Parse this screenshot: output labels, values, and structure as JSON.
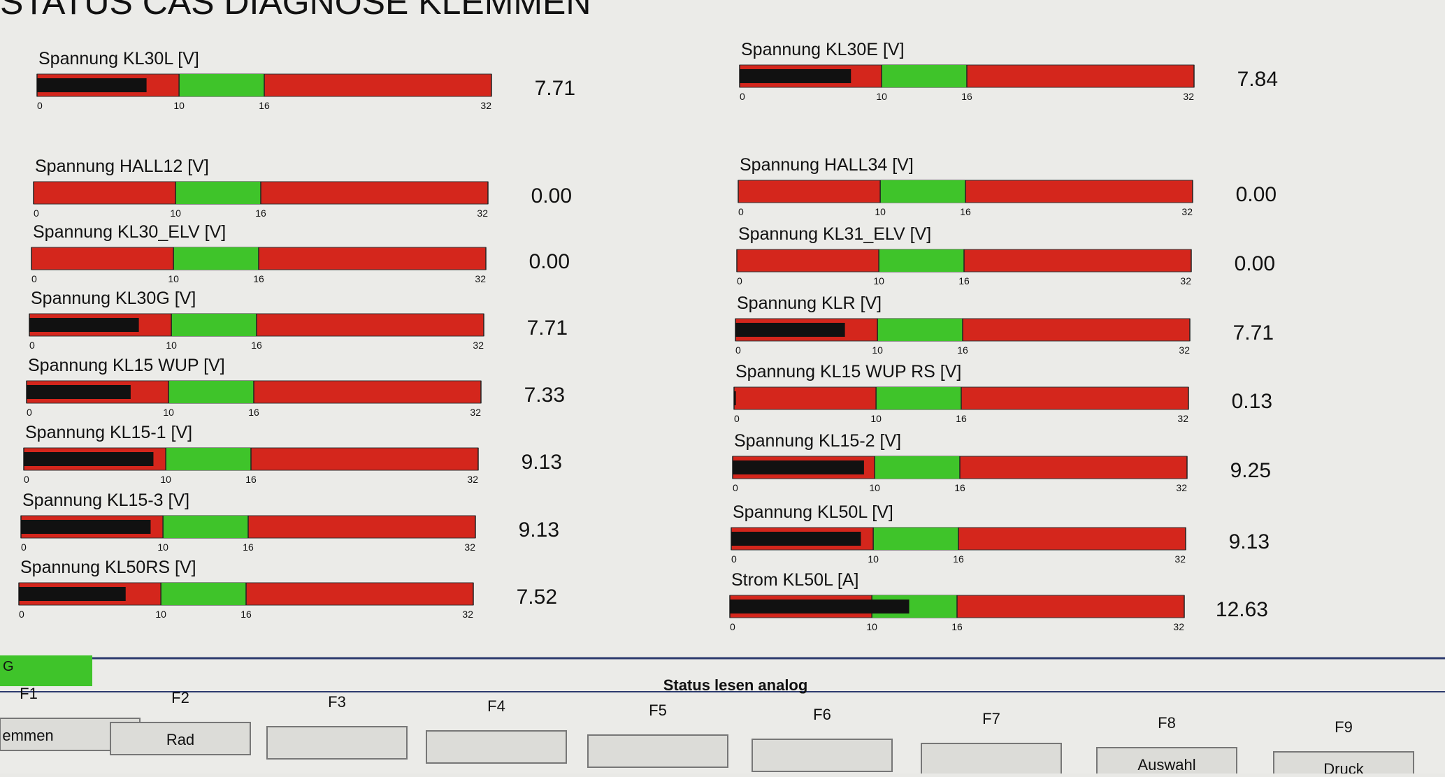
{
  "title": "STATUS CAS DIAGNOSE KLEMMEN",
  "scale": {
    "min": 0,
    "max": 32,
    "ticks": [
      0,
      10,
      16,
      32
    ],
    "green_range": [
      10,
      16
    ],
    "fill_color": "#111111",
    "zone_color": "#d4261c",
    "green_color": "#3fc42a"
  },
  "gauges": [
    {
      "label": "Spannung KL30L [V]",
      "value": 7.71
    },
    {
      "label": "Spannung HALL12 [V]",
      "value": 0,
      "value_label": "0.00"
    },
    {
      "label": "Spannung KL30_ELV [V]",
      "value": 0,
      "value_label": "0.00"
    },
    {
      "label": "Spannung KL30G [V]",
      "value": 7.71
    },
    {
      "label": "Spannung KL15 WUP [V]",
      "value": 7.33
    },
    {
      "label": "Spannung KL15-1 [V]",
      "value": 9.13
    },
    {
      "label": "Spannung KL15-3 [V]",
      "value": 9.13
    },
    {
      "label": "Spannung KL50RS [V]",
      "value": 7.52
    },
    {
      "label": "Spannung KL30E [V]",
      "value": 7.84
    },
    {
      "label": "Spannung HALL34 [V]",
      "value": 0,
      "value_label": "0.00"
    },
    {
      "label": "Spannung KL31_ELV [V]",
      "value": 0,
      "value_label": "0.00"
    },
    {
      "label": "Spannung KLR [V]",
      "value": 7.71
    },
    {
      "label": "Spannung KL15 WUP RS [V]",
      "value": 0.13
    },
    {
      "label": "Spannung KL15-2 [V]",
      "value": 9.25
    },
    {
      "label": "Spannung KL50L [V]",
      "value": 9.13
    },
    {
      "label": "Strom KL50L [A]",
      "value": 12.63
    }
  ],
  "indicator": "G",
  "status": "Status lesen analog",
  "function_keys": [
    {
      "key": "F1",
      "button": "emmen"
    },
    {
      "key": "F2",
      "button": "Rad"
    },
    {
      "key": "F3"
    },
    {
      "key": "F4"
    },
    {
      "key": "F5"
    },
    {
      "key": "F6"
    },
    {
      "key": "F7"
    },
    {
      "key": "F8",
      "button": "Auswahl"
    },
    {
      "key": "F9",
      "button": "Druck"
    }
  ]
}
